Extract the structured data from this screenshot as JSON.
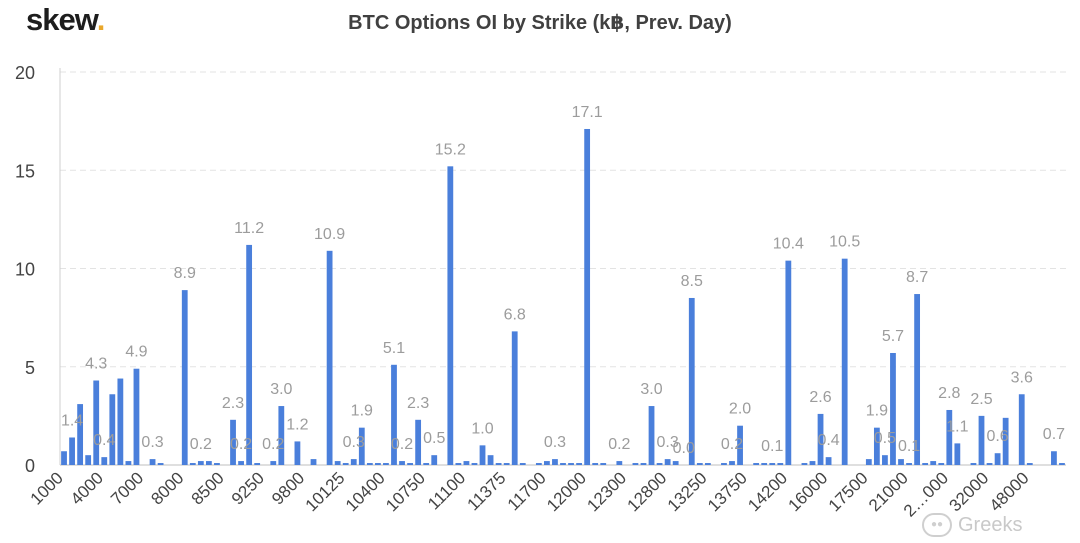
{
  "logo": {
    "text": "skew",
    "dot": "."
  },
  "title": "BTC Options OI by Strike (k฿, Prev. Day)",
  "watermark": {
    "text": "Greeks"
  },
  "colors": {
    "bar": "#4a7fdb",
    "label": "#9c9c9c",
    "axis": "#444444",
    "grid": "#e3e3e3"
  },
  "chart_data": {
    "type": "bar",
    "title": "BTC Options OI by Strike (k฿, Prev. Day)",
    "xlabel": "",
    "ylabel": "",
    "ylim": [
      0,
      20
    ],
    "yticks": [
      0,
      5,
      10,
      15,
      20
    ],
    "grid": true,
    "x_tick_labels": [
      {
        "index": 0,
        "label": "1000"
      },
      {
        "index": 5,
        "label": "4000"
      },
      {
        "index": 10,
        "label": "7000"
      },
      {
        "index": 15,
        "label": "8000"
      },
      {
        "index": 20,
        "label": "8500"
      },
      {
        "index": 25,
        "label": "9250"
      },
      {
        "index": 30,
        "label": "9800"
      },
      {
        "index": 35,
        "label": "10125"
      },
      {
        "index": 40,
        "label": "10400"
      },
      {
        "index": 45,
        "label": "10750"
      },
      {
        "index": 50,
        "label": "11100"
      },
      {
        "index": 55,
        "label": "11375"
      },
      {
        "index": 60,
        "label": "11700"
      },
      {
        "index": 65,
        "label": "12000"
      },
      {
        "index": 70,
        "label": "12300"
      },
      {
        "index": 75,
        "label": "12800"
      },
      {
        "index": 80,
        "label": "13250"
      },
      {
        "index": 85,
        "label": "13750"
      },
      {
        "index": 90,
        "label": "14200"
      },
      {
        "index": 95,
        "label": "16000"
      },
      {
        "index": 100,
        "label": "17500"
      },
      {
        "index": 105,
        "label": "21000"
      },
      {
        "index": 110,
        "label": "2…000"
      },
      {
        "index": 115,
        "label": "32000"
      },
      {
        "index": 120,
        "label": "48000"
      }
    ],
    "values": [
      0.7,
      1.4,
      3.1,
      0.5,
      4.3,
      0.4,
      3.6,
      4.4,
      0.2,
      4.9,
      0.0,
      0.3,
      0.1,
      0.0,
      0.0,
      8.9,
      0.1,
      0.2,
      0.2,
      0.1,
      0.0,
      2.3,
      0.2,
      11.2,
      0.1,
      0.0,
      0.2,
      3.0,
      0.0,
      1.2,
      0.0,
      0.3,
      0.0,
      10.9,
      0.2,
      0.1,
      0.3,
      1.9,
      0.1,
      0.1,
      0.1,
      5.1,
      0.2,
      0.1,
      2.3,
      0.1,
      0.5,
      0.0,
      15.2,
      0.1,
      0.2,
      0.1,
      1.0,
      0.5,
      0.1,
      0.1,
      6.8,
      0.1,
      0.0,
      0.1,
      0.2,
      0.3,
      0.1,
      0.1,
      0.1,
      17.1,
      0.1,
      0.1,
      0.0,
      0.2,
      0.0,
      0.1,
      0.1,
      3.0,
      0.1,
      0.3,
      0.2,
      0.0,
      8.5,
      0.1,
      0.1,
      0.0,
      0.1,
      0.2,
      2.0,
      0.0,
      0.1,
      0.1,
      0.1,
      0.1,
      10.4,
      0.0,
      0.1,
      0.2,
      2.6,
      0.4,
      0.0,
      10.5,
      0.0,
      0.0,
      0.3,
      1.9,
      0.5,
      5.7,
      0.3,
      0.1,
      8.7,
      0.1,
      0.2,
      0.1,
      2.8,
      1.1,
      0.0,
      0.1,
      2.5,
      0.1,
      0.6,
      2.4,
      0.0,
      3.6,
      0.1,
      0.0,
      0.0,
      0.7,
      0.1
    ],
    "data_labels": [
      {
        "index": 1,
        "text": "1.4"
      },
      {
        "index": 4,
        "text": "4.3"
      },
      {
        "index": 5,
        "text": "0.4"
      },
      {
        "index": 9,
        "text": "4.9"
      },
      {
        "index": 11,
        "text": "0.3"
      },
      {
        "index": 15,
        "text": "8.9"
      },
      {
        "index": 17,
        "text": "0.2"
      },
      {
        "index": 21,
        "text": "2.3"
      },
      {
        "index": 22,
        "text": "0.2"
      },
      {
        "index": 23,
        "text": "11.2"
      },
      {
        "index": 26,
        "text": "0.2"
      },
      {
        "index": 27,
        "text": "3.0"
      },
      {
        "index": 29,
        "text": "1.2"
      },
      {
        "index": 33,
        "text": "10.9"
      },
      {
        "index": 36,
        "text": "0.3"
      },
      {
        "index": 37,
        "text": "1.9"
      },
      {
        "index": 41,
        "text": "5.1"
      },
      {
        "index": 42,
        "text": "0.2"
      },
      {
        "index": 44,
        "text": "2.3"
      },
      {
        "index": 46,
        "text": "0.5"
      },
      {
        "index": 48,
        "text": "15.2"
      },
      {
        "index": 52,
        "text": "1.0"
      },
      {
        "index": 56,
        "text": "6.8"
      },
      {
        "index": 61,
        "text": "0.3"
      },
      {
        "index": 65,
        "text": "17.1"
      },
      {
        "index": 69,
        "text": "0.2"
      },
      {
        "index": 73,
        "text": "3.0"
      },
      {
        "index": 75,
        "text": "0.3"
      },
      {
        "index": 77,
        "text": "0.0"
      },
      {
        "index": 78,
        "text": "8.5"
      },
      {
        "index": 83,
        "text": "0.2"
      },
      {
        "index": 84,
        "text": "2.0"
      },
      {
        "index": 88,
        "text": "0.1"
      },
      {
        "index": 90,
        "text": "10.4"
      },
      {
        "index": 94,
        "text": "2.6"
      },
      {
        "index": 95,
        "text": "0.4"
      },
      {
        "index": 97,
        "text": "10.5"
      },
      {
        "index": 101,
        "text": "1.9"
      },
      {
        "index": 102,
        "text": "0.5"
      },
      {
        "index": 103,
        "text": "5.7"
      },
      {
        "index": 105,
        "text": "0.1"
      },
      {
        "index": 106,
        "text": "8.7"
      },
      {
        "index": 110,
        "text": "2.8"
      },
      {
        "index": 111,
        "text": "1.1"
      },
      {
        "index": 114,
        "text": "2.5"
      },
      {
        "index": 116,
        "text": "0.6"
      },
      {
        "index": 119,
        "text": "3.6"
      },
      {
        "index": 123,
        "text": "0.7"
      }
    ]
  }
}
